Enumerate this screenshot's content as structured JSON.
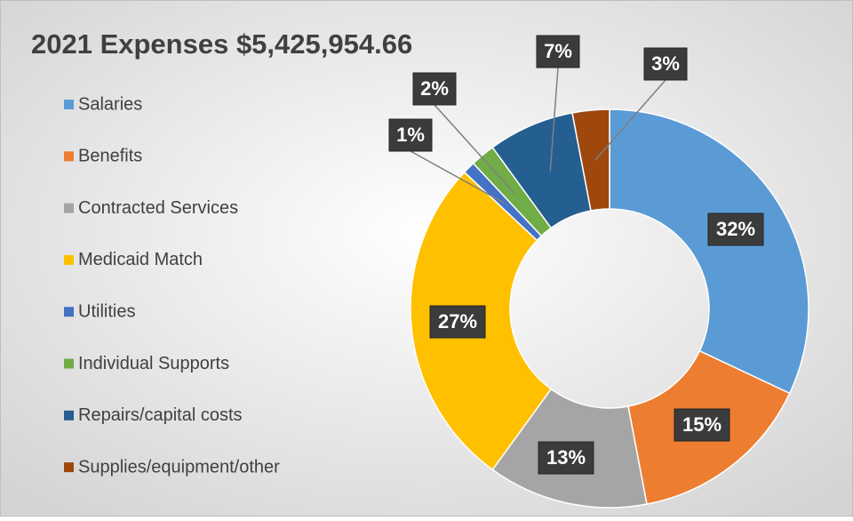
{
  "chart_data": {
    "type": "pie",
    "donut": true,
    "title": "2021 Expenses $5,425,954.66",
    "categories": [
      "Salaries",
      "Benefits",
      "Contracted Services",
      "Medicaid Match",
      "Utilities",
      "Individual Supports",
      "Repairs/capital costs",
      "Supplies/equipment/other"
    ],
    "values": [
      32,
      15,
      13,
      27,
      1,
      2,
      7,
      3
    ],
    "value_labels": [
      "32%",
      "15%",
      "13%",
      "27%",
      "1%",
      "2%",
      "7%",
      "3%"
    ],
    "colors": [
      "#5b9bd5",
      "#ed7d31",
      "#a5a5a5",
      "#ffc000",
      "#4472c4",
      "#70ad47",
      "#255e91",
      "#9e480e"
    ],
    "legend": "left"
  }
}
